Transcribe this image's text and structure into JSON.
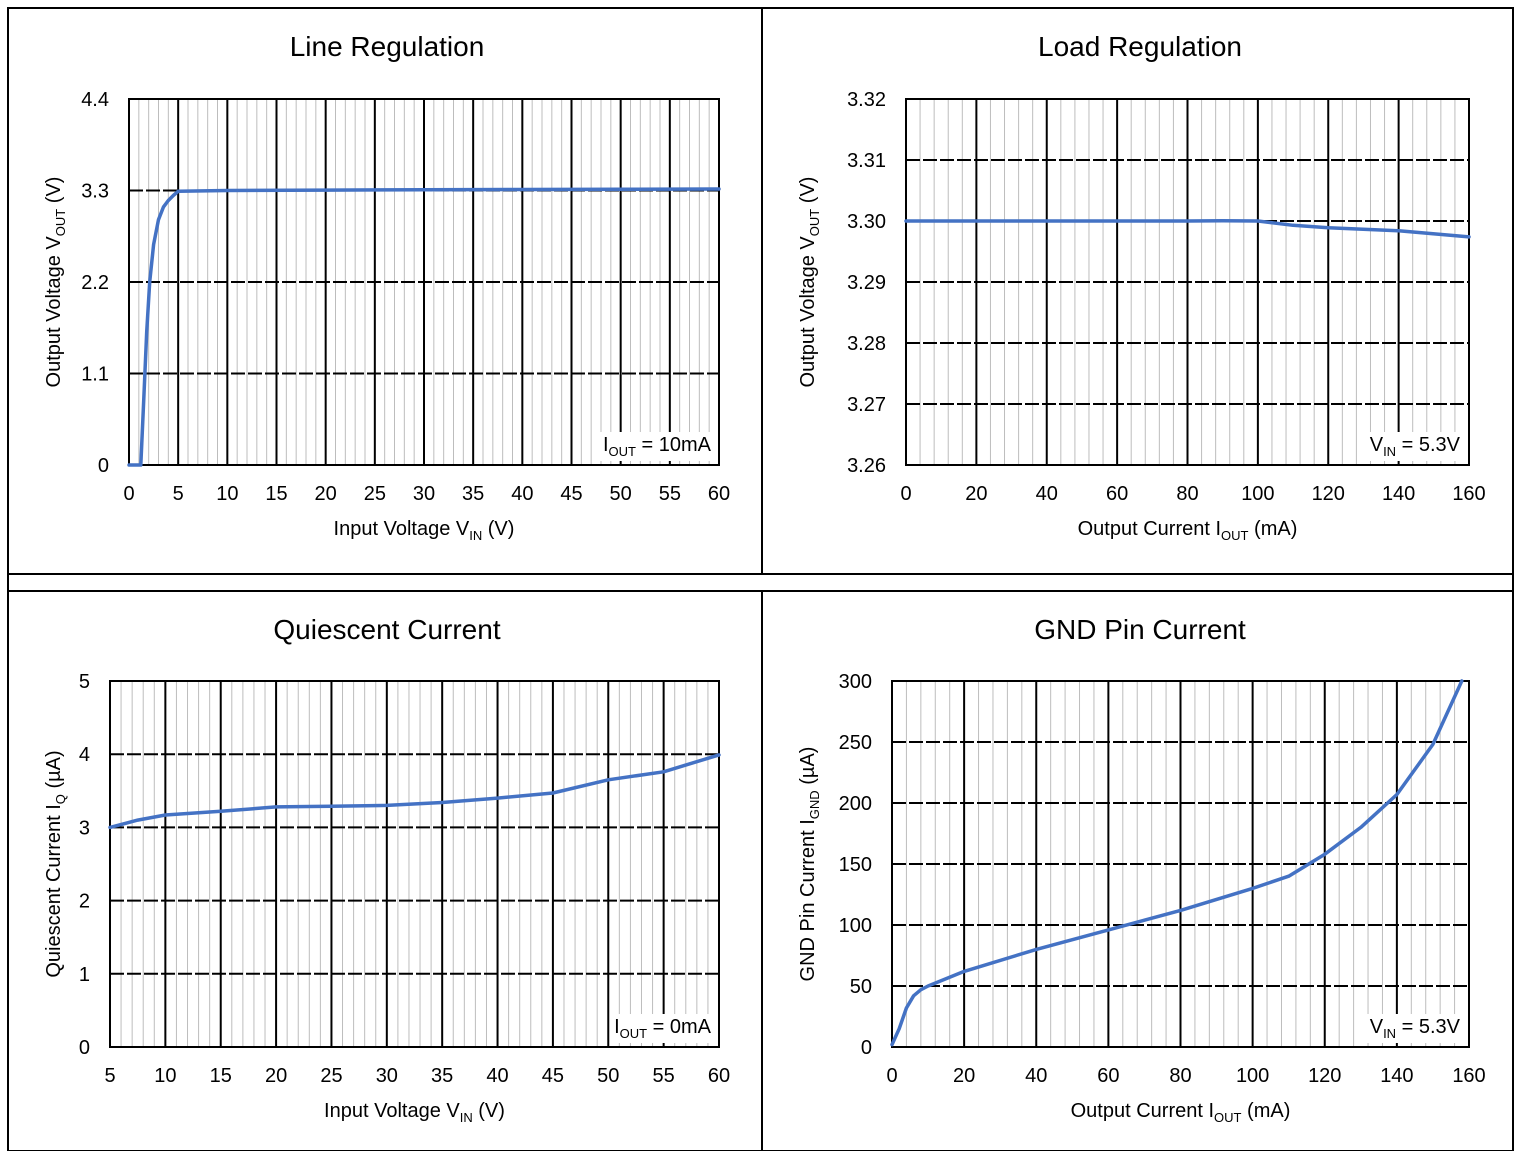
{
  "chart_data": [
    {
      "type": "line",
      "title": "Line Regulation",
      "xlabel": {
        "main": "Input Voltage V",
        "sub": "IN",
        "post": " (V)"
      },
      "ylabel": {
        "main": "Output Voltage V",
        "sub": "OUT",
        "post": " (V)"
      },
      "xlim": [
        0,
        60
      ],
      "ylim": [
        0,
        4.4
      ],
      "xticks": [
        "0",
        "5",
        "10",
        "15",
        "20",
        "25",
        "30",
        "35",
        "40",
        "45",
        "50",
        "55",
        "60"
      ],
      "yticks": [
        "0",
        "1.1",
        "2.2",
        "3.3",
        "4.4"
      ],
      "grid": true,
      "annotation": {
        "main": "I",
        "sub": "OUT",
        "post": " = 10mA"
      },
      "series": [
        {
          "color": "#4472c4",
          "x": [
            0,
            1.2,
            1.5,
            1.8,
            2.1,
            2.5,
            3.0,
            3.5,
            4.0,
            4.5,
            5.0,
            10,
            20,
            30,
            40,
            50,
            60
          ],
          "y": [
            0,
            0,
            0.8,
            1.6,
            2.2,
            2.65,
            2.95,
            3.1,
            3.18,
            3.24,
            3.29,
            3.3,
            3.305,
            3.31,
            3.312,
            3.315,
            3.318
          ]
        }
      ]
    },
    {
      "type": "line",
      "title": "Load Regulation",
      "xlabel": {
        "main": "Output Current I",
        "sub": "OUT",
        "post": " (mA)"
      },
      "ylabel": {
        "main": "Output Voltage V",
        "sub": "OUT",
        "post": " (V)"
      },
      "xlim": [
        0,
        160
      ],
      "ylim": [
        3.26,
        3.32
      ],
      "xticks": [
        "0",
        "20",
        "40",
        "60",
        "80",
        "100",
        "120",
        "140",
        "160"
      ],
      "yticks": [
        "3.26",
        "3.27",
        "3.28",
        "3.29",
        "3.30",
        "3.31",
        "3.32"
      ],
      "grid": true,
      "annotation": {
        "main": "V",
        "sub": "IN",
        "post": " = 5.3V"
      },
      "series": [
        {
          "color": "#4472c4",
          "x": [
            0,
            20,
            40,
            60,
            80,
            90,
            100,
            110,
            120,
            140,
            160
          ],
          "y": [
            3.3,
            3.3,
            3.3,
            3.3,
            3.3,
            3.30005,
            3.3,
            3.2993,
            3.2989,
            3.2984,
            3.2974
          ]
        }
      ]
    },
    {
      "type": "line",
      "title": "Quiescent Current",
      "xlabel": {
        "main": "Input Voltage V",
        "sub": "IN",
        "post": " (V)"
      },
      "ylabel": {
        "main": "Quiescent Current I",
        "sub": "Q",
        "post": " (µA)"
      },
      "xlim": [
        5,
        60
      ],
      "ylim": [
        0,
        5
      ],
      "xticks": [
        "5",
        "10",
        "15",
        "20",
        "25",
        "30",
        "35",
        "40",
        "45",
        "50",
        "55",
        "60"
      ],
      "yticks": [
        "0",
        "1",
        "2",
        "3",
        "4",
        "5"
      ],
      "grid": true,
      "annotation": {
        "main": "I",
        "sub": "OUT",
        "post": " = 0mA"
      },
      "series": [
        {
          "color": "#4472c4",
          "x": [
            5,
            7.5,
            10,
            15,
            20,
            25,
            30,
            35,
            40,
            45,
            50,
            55,
            60
          ],
          "y": [
            3.0,
            3.1,
            3.17,
            3.22,
            3.28,
            3.29,
            3.3,
            3.34,
            3.4,
            3.47,
            3.65,
            3.76,
            3.99
          ]
        }
      ]
    },
    {
      "type": "line",
      "title": "GND Pin Current",
      "xlabel": {
        "main": "Output Current I",
        "sub": "OUT",
        "post": " (mA)"
      },
      "ylabel": {
        "main": "GND Pin Current I",
        "sub": "GND",
        "post": " (µA)"
      },
      "xlim": [
        0,
        160
      ],
      "ylim": [
        0,
        300
      ],
      "xticks": [
        "0",
        "20",
        "40",
        "60",
        "80",
        "100",
        "120",
        "140",
        "160"
      ],
      "yticks": [
        "0",
        "50",
        "100",
        "150",
        "200",
        "250",
        "300"
      ],
      "grid": true,
      "annotation": {
        "main": "V",
        "sub": "IN",
        "post": " = 5.3V"
      },
      "series": [
        {
          "color": "#4472c4",
          "x": [
            0,
            2,
            4,
            6,
            8,
            10,
            20,
            40,
            60,
            80,
            100,
            110,
            120,
            130,
            140,
            150,
            158
          ],
          "y": [
            2,
            15,
            32,
            42,
            47,
            50,
            62,
            80,
            96,
            112,
            130,
            140,
            158,
            180,
            207,
            248,
            300
          ]
        }
      ]
    }
  ]
}
